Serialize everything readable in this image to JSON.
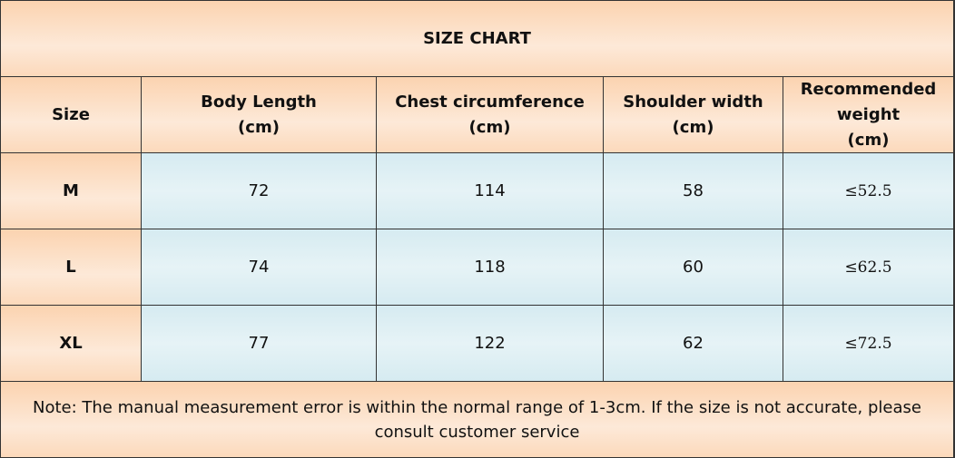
{
  "title": "SIZE CHART",
  "header_row": [
    [
      "Size"
    ],
    [
      "Body Length",
      "(cm)"
    ],
    [
      "Chest circumference",
      "(cm)"
    ],
    [
      "Shoulder width",
      "(cm)"
    ],
    [
      "Recommended",
      "weight",
      "(cm)"
    ]
  ],
  "rows": [
    [
      "M",
      72,
      114,
      58,
      "≤52.5"
    ],
    [
      "L",
      74,
      118,
      60,
      "≤62.5"
    ],
    [
      "XL",
      77,
      122,
      62,
      "≤72.5"
    ]
  ],
  "note": "Note: The manual measurement error is within the normal range of 1-3cm. If the size is not accurate, please consult customer service"
}
